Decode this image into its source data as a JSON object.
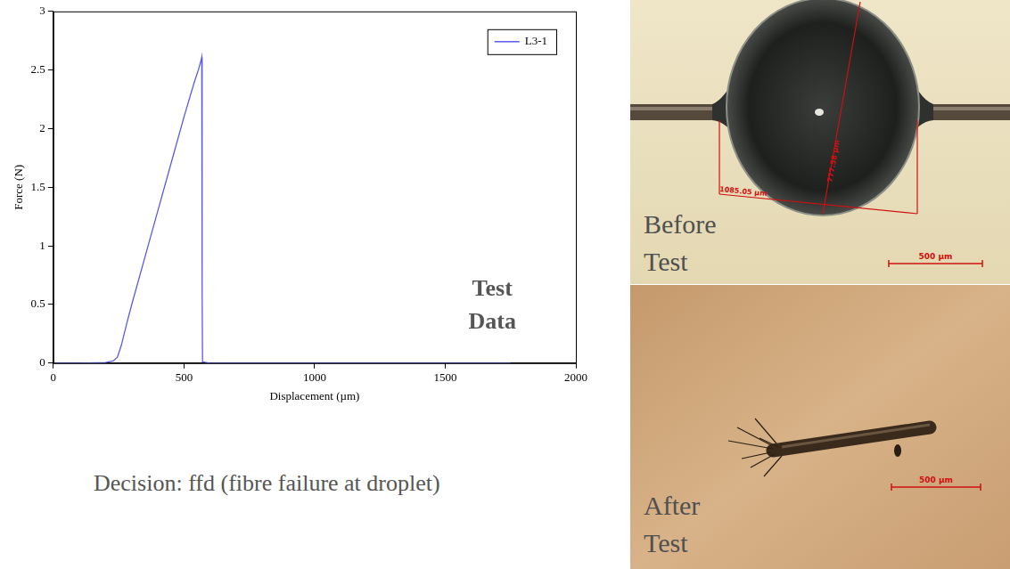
{
  "chart_data": {
    "type": "line",
    "x_label": "Displacement (µm)",
    "y_label": "Force (N)",
    "annotation": "Test Data",
    "x": [
      0,
      100,
      200,
      230,
      245,
      260,
      280,
      300,
      350,
      400,
      450,
      500,
      540,
      555,
      565,
      568,
      569,
      570,
      571,
      600,
      800,
      1000,
      1200,
      1500,
      1750
    ],
    "series": [
      {
        "name": "L3-1",
        "color": "#5a5ae6",
        "values": [
          0,
          0,
          0.005,
          0.02,
          0.05,
          0.15,
          0.33,
          0.5,
          0.9,
          1.3,
          1.7,
          2.1,
          2.4,
          2.5,
          2.58,
          2.61,
          1.9,
          0.6,
          0.01,
          0,
          0,
          0,
          0,
          0,
          0
        ]
      }
    ],
    "xlim": [
      0,
      2000
    ],
    "xticks": [
      0,
      500,
      1000,
      1500,
      2000
    ],
    "ylim": [
      0,
      3
    ],
    "yticks": [
      0,
      0.5,
      1,
      1.5,
      2,
      2.5,
      3
    ],
    "grid": false,
    "legend": "upper right"
  },
  "decision": "Decision: ffd (fibre failure at droplet)",
  "photos": [
    {
      "caption": "Before Test",
      "scale_bar": "500 µm",
      "measurements": [
        "1085.05 µm",
        "777.58 µm"
      ]
    },
    {
      "caption": "After Test",
      "scale_bar": "500 µm"
    }
  ]
}
